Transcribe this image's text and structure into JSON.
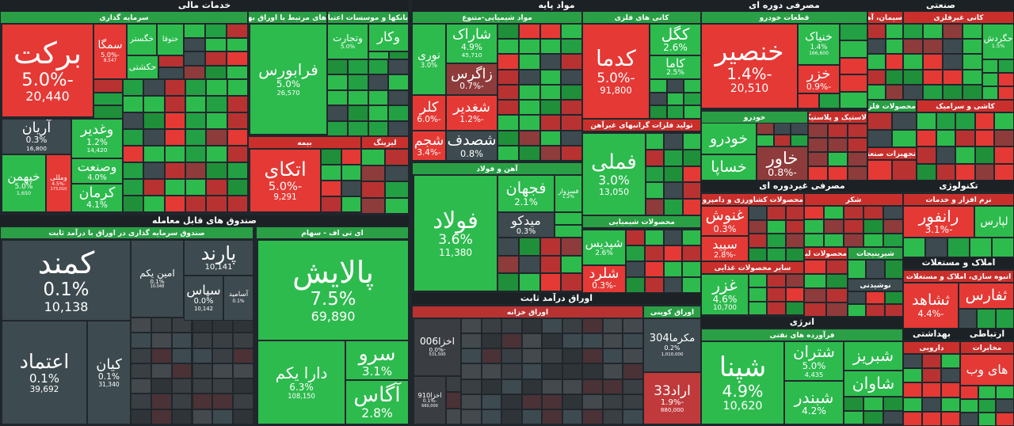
{
  "groups": [
    {
      "title": "خدمات مالی",
      "subgroups": [
        {
          "title": "سرمایه گذاری",
          "color": "#2a9f45",
          "tiles": [
            {
              "name": "برکت",
              "change": "-5.0%",
              "value": "20,440",
              "color": "#e53935"
            },
            {
              "name": "سمگا",
              "change": "-5.0%",
              "value": "8,547",
              "color": "#e53935"
            },
            {
              "name": "خگستر",
              "color": "#2dbb4e"
            },
            {
              "name": "ختوقا",
              "color": "#2dbb4e"
            },
            {
              "name": "حکشتی",
              "color": "#2dbb4e"
            },
            {
              "name": "آریان",
              "change": "0.3%",
              "value": "16,800",
              "color": "#3d4a4f"
            },
            {
              "name": "وغدیر",
              "change": "1.2%",
              "value": "14,420",
              "color": "#2dbb4e"
            },
            {
              "name": "خپهمن",
              "change": "5.0%",
              "value": "1,650",
              "color": "#2dbb4e"
            },
            {
              "name": "ومللی",
              "change": "-4.5%",
              "value": "173,010",
              "color": "#e53935"
            },
            {
              "name": "وصنعت",
              "change": "4.0%",
              "color": "#2dbb4e"
            },
            {
              "name": "کرمان",
              "change": "4.1%",
              "color": "#2dbb4e"
            }
          ]
        },
        {
          "title": "های مرتبط با اوراق بهادار",
          "color": "#2a9f45",
          "tiles": [
            {
              "name": "فرابورس",
              "change": "5.0%",
              "value": "26,570",
              "color": "#2dbb4e"
            }
          ]
        },
        {
          "title": "بانکها و موسسات اعتباری",
          "color": "#2a9f45",
          "tiles": [
            {
              "name": "وتجارت",
              "change": "5.0%",
              "color": "#2dbb4e"
            },
            {
              "name": "وکار",
              "color": "#2dbb4e"
            }
          ]
        },
        {
          "title": "بیمه",
          "color": "#c9302c",
          "tiles": [
            {
              "name": "اتکای",
              "change": "-5.0%",
              "value": "9,291",
              "color": "#e53935"
            }
          ]
        },
        {
          "title": "لیزینگ",
          "color": "#c9302c",
          "tiles": []
        }
      ]
    },
    {
      "title": "صندوق های قابل معامله",
      "subgroups": [
        {
          "title": "صندوق سرمایه گذاری در اوراق با درآمد ثابت",
          "color": "#2a9f45",
          "tiles": [
            {
              "name": "کمند",
              "change": "0.1%",
              "value": "10,138",
              "color": "#3d4a4f"
            },
            {
              "name": "اعتماد",
              "change": "0.1%",
              "value": "39,692",
              "color": "#3d4a4f"
            },
            {
              "name": "کیان",
              "change": "0.1%",
              "value": "31,340",
              "color": "#3d4a4f"
            },
            {
              "name": "امین یکم",
              "change": "0.1%",
              "value": "10,048",
              "color": "#3d4a4f"
            },
            {
              "name": "پارند",
              "value": "10,141",
              "color": "#3d4a4f"
            },
            {
              "name": "سپاس",
              "change": "0.0%",
              "value": "10,142",
              "color": "#3d4a4f"
            },
            {
              "name": "آسامید",
              "change": "0.1%",
              "color": "#3d4a4f"
            }
          ]
        },
        {
          "title": "ای تی اف - سهام",
          "color": "#2a9f45",
          "tiles": [
            {
              "name": "پالایش",
              "change": "7.5%",
              "value": "69,890",
              "color": "#2dbb4e"
            },
            {
              "name": "دارا یکم",
              "change": "6.3%",
              "value": "108,150",
              "color": "#2dbb4e"
            },
            {
              "name": "سرو",
              "change": "3.1%",
              "color": "#2dbb4e"
            },
            {
              "name": "آگاس",
              "change": "2.8%",
              "color": "#2dbb4e"
            }
          ]
        }
      ]
    },
    {
      "title": "مواد پایه",
      "subgroups": [
        {
          "title": "مواد شیمیایی-متنوع",
          "color": "#2a9f45",
          "tiles": [
            {
              "name": "شاراک",
              "change": "4.9%",
              "value": "45,710",
              "color": "#2dbb4e"
            },
            {
              "name": "نوری",
              "change": "3.0%",
              "color": "#2dbb4e"
            },
            {
              "name": "زاگرس",
              "change": "-0.7%",
              "color": "#8e3b3b"
            },
            {
              "name": "کلر",
              "change": "-6.0%",
              "color": "#e53935"
            },
            {
              "name": "شغدیر",
              "change": "-1.2%",
              "color": "#e53935"
            },
            {
              "name": "شجم",
              "change": "-3.4%",
              "color": "#e53935"
            },
            {
              "name": "شصدف",
              "change": "0.8%",
              "color": "#3d4a4f"
            }
          ]
        },
        {
          "title": "آهن و فولاد",
          "color": "#2a9f45",
          "tiles": [
            {
              "name": "فولاد",
              "change": "3.6%",
              "value": "11,380",
              "color": "#2dbb4e"
            },
            {
              "name": "فجهان",
              "change": "2.1%",
              "color": "#2dbb4e"
            },
            {
              "name": "فسزوار",
              "change": "1.2%",
              "color": "#2dbb4e"
            },
            {
              "name": "میدکو",
              "change": "0.3%",
              "color": "#3d4a4f"
            }
          ]
        },
        {
          "title": "کانی های فلزی",
          "color": "#2a9f45",
          "tiles": [
            {
              "name": "کدما",
              "change": "-5.0%",
              "value": "91,800",
              "color": "#e53935"
            },
            {
              "name": "کگل",
              "change": "2.6%",
              "color": "#2dbb4e"
            },
            {
              "name": "کاما",
              "change": "2.5%",
              "color": "#2dbb4e"
            }
          ]
        },
        {
          "title": "تولید فلزات گرانبهای غیرآهن",
          "color": "#c9302c",
          "tiles": [
            {
              "name": "فملی",
              "change": "3.0%",
              "value": "13,050",
              "color": "#2dbb4e"
            }
          ]
        },
        {
          "title": "محصولات شیمیایی",
          "color": "#2a9f45",
          "tiles": [
            {
              "name": "شپدیس",
              "change": "2.6%",
              "color": "#2dbb4e"
            },
            {
              "name": "شلرد",
              "change": "-0.3%",
              "color": "#e53935"
            }
          ]
        }
      ]
    },
    {
      "title": "اوراق درآمد ثابت",
      "subgroups": [
        {
          "title": "اوراق خزانه",
          "color": "#b83232",
          "tiles": [
            {
              "name": "اخزا006",
              "change": "-0.0%",
              "value": "531,500",
              "color": "#3a3d42"
            },
            {
              "name": "اخزا910",
              "change": "-0.1%",
              "value": "660,000",
              "color": "#3a3d42"
            }
          ]
        },
        {
          "title": "اوراق کوپنی",
          "color": "#2a9f45",
          "tiles": [
            {
              "name": "مکرما304",
              "change": "0.2%",
              "value": "1,010,000",
              "color": "#3d4a4f"
            },
            {
              "name": "اراد33",
              "change": "-1.9%",
              "value": "880,000",
              "color": "#c0393b"
            }
          ]
        }
      ]
    },
    {
      "title": "مصرفی دوره ای",
      "subgroups": [
        {
          "title": "قطعات خودرو",
          "color": "#2a9f45",
          "tiles": [
            {
              "name": "خنصیر",
              "change": "-1.4%",
              "value": "20,510",
              "color": "#e53935"
            },
            {
              "name": "خنیاک",
              "change": "1.4%",
              "value": "166,600",
              "color": "#2dbb4e"
            },
            {
              "name": "خزر",
              "change": "-0.9%",
              "color": "#e53935"
            }
          ]
        },
        {
          "title": "خودرو",
          "color": "#2a9f45",
          "tiles": [
            {
              "name": "خودرو",
              "color": "#2dbb4e"
            },
            {
              "name": "خساپا",
              "color": "#2dbb4e"
            },
            {
              "name": "خاور",
              "change": "-0.8%",
              "color": "#8e3b3b"
            }
          ]
        },
        {
          "title": "لاستیک و پلاستیک",
          "color": "#c9302c",
          "tiles": []
        }
      ]
    },
    {
      "title": "صنعتی",
      "subgroups": [
        {
          "title": "سیمان، آهک و گچ",
          "color": "#c9302c",
          "tiles": []
        },
        {
          "title": "کانی غیرفلزی",
          "color": "#c9302c",
          "tiles": [
            {
              "name": "حگردش",
              "change": "1.5%",
              "color": "#2dbb4e"
            }
          ]
        },
        {
          "title": "محصولات فلزی",
          "color": "#2a9f45",
          "tiles": []
        },
        {
          "title": "تجهیزات صنعتی",
          "color": "#c9302c",
          "tiles": []
        },
        {
          "title": "کاشی و سرامیک",
          "color": "#c9302c",
          "tiles": []
        }
      ]
    },
    {
      "title": "مصرفی غیردوره ای",
      "subgroups": [
        {
          "title": "محصولات کشاورزی و دامپروری",
          "color": "#c9302c",
          "tiles": [
            {
              "name": "غنوش",
              "change": "0.3%",
              "color": "#e53935"
            },
            {
              "name": "سپید",
              "change": "-2.8%",
              "color": "#e53935"
            }
          ]
        },
        {
          "title": "سایر محصولات غذایی",
          "color": "#c9302c",
          "tiles": [
            {
              "name": "غزر",
              "change": "4.6%",
              "value": "10,700",
              "color": "#2dbb4e"
            }
          ]
        },
        {
          "title": "شکر",
          "color": "#c9302c",
          "tiles": []
        },
        {
          "title": "محصولات لبنی",
          "color": "#c9302c",
          "tiles": []
        },
        {
          "title": "شیرینیجات",
          "color": "#2a9f45",
          "tiles": []
        },
        {
          "title": "نوشیدنی",
          "color": "#3d4a4f",
          "tiles": []
        }
      ]
    },
    {
      "title": "تکنولوژی",
      "subgroups": [
        {
          "title": "نرم افزار و خدمات",
          "color": "#c9302c",
          "tiles": [
            {
              "name": "رانفور",
              "change": "-3.1%",
              "color": "#e53935"
            },
            {
              "name": "لپارس",
              "color": "#2dbb4e"
            }
          ]
        }
      ]
    },
    {
      "title": "املاک و مستغلات",
      "subgroups": [
        {
          "title": "انبوه سازی، املاک و مستغلات",
          "color": "#c9302c",
          "tiles": [
            {
              "name": "ثشاهد",
              "change": "-4.4%",
              "color": "#e53935"
            },
            {
              "name": "ثفارس",
              "color": "#e53935"
            }
          ]
        }
      ]
    },
    {
      "title": "بهداشتی",
      "subgroups": [
        {
          "title": "دارویی",
          "color": "#c9302c",
          "tiles": []
        }
      ]
    },
    {
      "title": "ارتباطی",
      "subgroups": [
        {
          "title": "مخابرات",
          "color": "#c9302c",
          "tiles": [
            {
              "name": "های وب",
              "color": "#e53935"
            }
          ]
        }
      ]
    },
    {
      "title": "انرژی",
      "subgroups": [
        {
          "title": "فرآورده های نفتی",
          "color": "#2a9f45",
          "tiles": [
            {
              "name": "شپنا",
              "change": "4.9%",
              "value": "10,620",
              "color": "#2dbb4e"
            },
            {
              "name": "شتران",
              "change": "5.0%",
              "value": "4,435",
              "color": "#2dbb4e"
            },
            {
              "name": "شبندر",
              "change": "4.2%",
              "color": "#2dbb4e"
            },
            {
              "name": "شبریز",
              "color": "#2dbb4e"
            },
            {
              "name": "شاوان",
              "color": "#2dbb4e"
            }
          ]
        }
      ]
    }
  ]
}
